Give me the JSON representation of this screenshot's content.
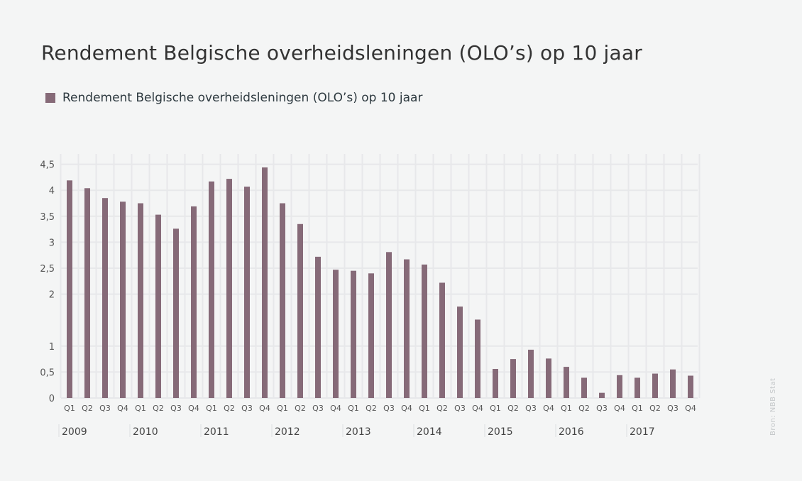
{
  "chart_data": {
    "type": "bar",
    "title": "Rendement Belgische overheidsleningen (OLO’s) op 10 jaar",
    "series": [
      {
        "name": "Rendement Belgische overheidsleningen (OLO’s) op 10 jaar",
        "color": "#866a78",
        "values": [
          4.19,
          4.04,
          3.85,
          3.78,
          3.75,
          3.53,
          3.26,
          3.69,
          4.17,
          4.22,
          4.07,
          4.44,
          3.75,
          3.35,
          2.72,
          2.47,
          2.45,
          2.4,
          2.81,
          2.67,
          2.57,
          2.22,
          1.76,
          1.51,
          0.56,
          0.75,
          0.93,
          0.76,
          0.6,
          0.39,
          0.1,
          0.44,
          0.39,
          0.47,
          0.55,
          0.43
        ]
      }
    ],
    "quarters": [
      "Q1",
      "Q2",
      "Q3",
      "Q4",
      "Q1",
      "Q2",
      "Q3",
      "Q4",
      "Q1",
      "Q2",
      "Q3",
      "Q4",
      "Q1",
      "Q2",
      "Q3",
      "Q4",
      "Q1",
      "Q2",
      "Q3",
      "Q4",
      "Q1",
      "Q2",
      "Q3",
      "Q4",
      "Q1",
      "Q2",
      "Q3",
      "Q4",
      "Q1",
      "Q2",
      "Q3",
      "Q4",
      "Q1",
      "Q2",
      "Q3",
      "Q4"
    ],
    "years": [
      "2009",
      "2010",
      "2011",
      "2012",
      "2013",
      "2014",
      "2015",
      "2016",
      "2017"
    ],
    "y_ticks": [
      0,
      0.5,
      1,
      2,
      2.5,
      3,
      3.5,
      4,
      4.5
    ],
    "y_tick_labels": [
      "0",
      "0,5",
      "1",
      "2",
      "2,5",
      "3",
      "3,5",
      "4",
      "4,5"
    ],
    "xlabel": "",
    "ylabel": "",
    "grid": true,
    "legend_position": "top-left",
    "source": "Bron: NBB Stat"
  }
}
